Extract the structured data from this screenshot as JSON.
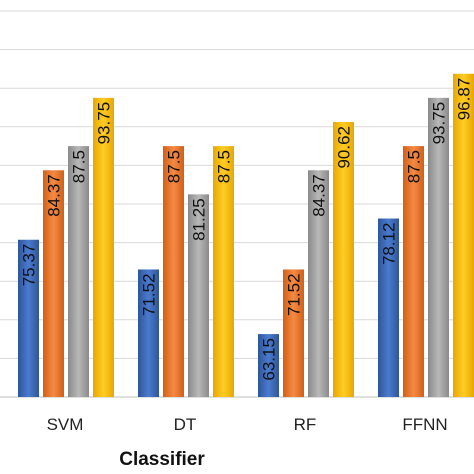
{
  "chart_data": {
    "type": "bar",
    "xlabel": "Classifier",
    "ylabel": "",
    "categories": [
      "SVM",
      "DT",
      "RF",
      "FFNN"
    ],
    "series": [
      {
        "values": [
          75.37,
          71.52,
          63.15,
          78.12
        ],
        "color": "#4472C4",
        "data_labels": [
          "75.37",
          "71.52",
          "63.15",
          "78.12"
        ]
      },
      {
        "values": [
          84.37,
          87.5,
          71.52,
          87.5
        ],
        "color": "#ED7D31",
        "data_labels": [
          "84.37",
          "87.5",
          "71.52",
          "87.5"
        ]
      },
      {
        "values": [
          87.5,
          81.25,
          84.37,
          93.75
        ],
        "color": "#A5A5A5",
        "data_labels": [
          "87.5",
          "81.25",
          "84.37",
          "93.75"
        ]
      },
      {
        "values": [
          93.75,
          87.5,
          90.62,
          96.87
        ],
        "color": "#FFC000",
        "data_labels": [
          "93.75",
          "87.5",
          "90.62",
          "96.87"
        ]
      }
    ],
    "ylim": [
      55,
      100
    ],
    "grid": true,
    "legend": "none"
  }
}
